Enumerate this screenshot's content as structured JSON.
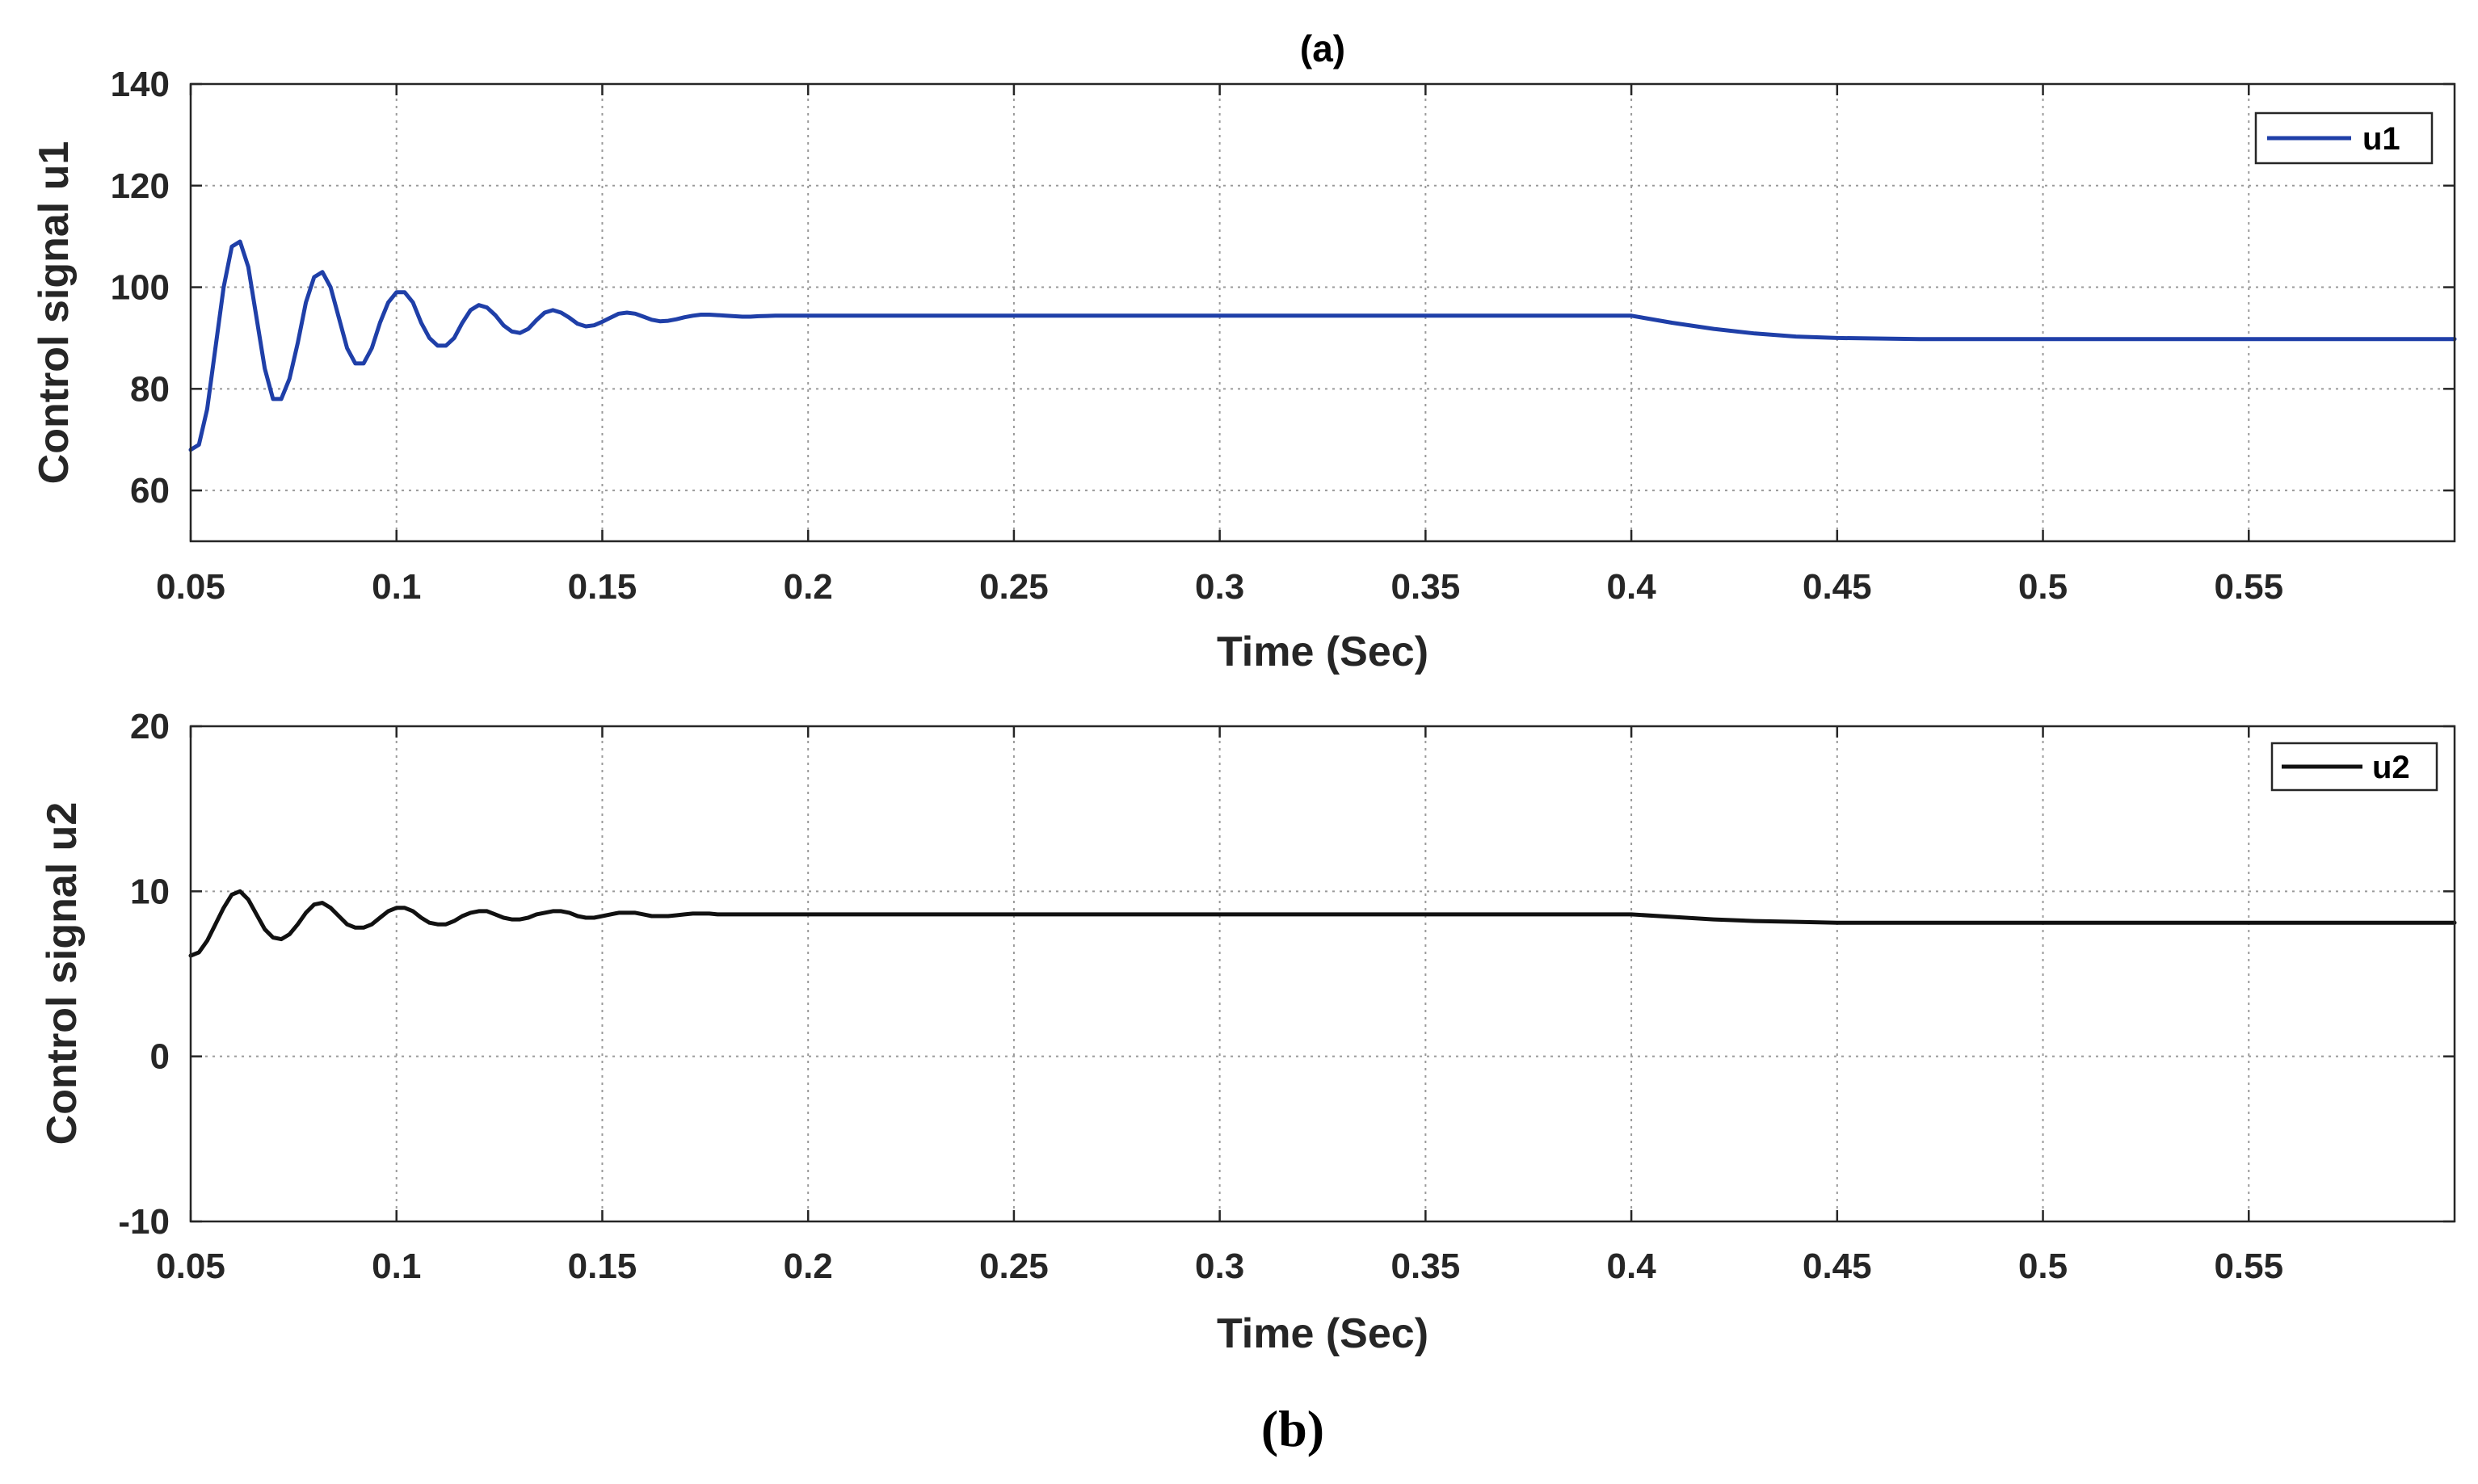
{
  "figure_caption": "(b)",
  "chart_data": [
    {
      "type": "line",
      "title": "(a)",
      "xlabel": "Time (Sec)",
      "ylabel": "Control signal u1",
      "xlim": [
        0.05,
        0.6
      ],
      "ylim": [
        50,
        140
      ],
      "xticks": [
        0.05,
        0.1,
        0.15,
        0.2,
        0.25,
        0.3,
        0.35,
        0.4,
        0.45,
        0.5,
        0.55
      ],
      "xtick_labels": [
        "0.05",
        "0.1",
        "0.15",
        "0.2",
        "0.25",
        "0.3",
        "0.35",
        "0.4",
        "0.45",
        "0.5",
        "0.55"
      ],
      "yticks": [
        60,
        80,
        100,
        120,
        140
      ],
      "ytick_labels": [
        "60",
        "80",
        "100",
        "120",
        "140"
      ],
      "grid": true,
      "legend_position": "top-right",
      "series": [
        {
          "name": "u1",
          "color": "#1f3fa8",
          "x": [
            0.05,
            0.052,
            0.054,
            0.056,
            0.058,
            0.06,
            0.062,
            0.064,
            0.066,
            0.068,
            0.07,
            0.072,
            0.074,
            0.076,
            0.078,
            0.08,
            0.082,
            0.084,
            0.086,
            0.088,
            0.09,
            0.092,
            0.094,
            0.096,
            0.098,
            0.1,
            0.102,
            0.104,
            0.106,
            0.108,
            0.11,
            0.112,
            0.114,
            0.116,
            0.118,
            0.12,
            0.122,
            0.124,
            0.126,
            0.128,
            0.13,
            0.132,
            0.134,
            0.136,
            0.138,
            0.14,
            0.142,
            0.144,
            0.146,
            0.148,
            0.15,
            0.152,
            0.154,
            0.156,
            0.158,
            0.16,
            0.162,
            0.164,
            0.166,
            0.168,
            0.17,
            0.172,
            0.174,
            0.176,
            0.178,
            0.18,
            0.182,
            0.184,
            0.186,
            0.188,
            0.19,
            0.192,
            0.194,
            0.196,
            0.198,
            0.2,
            0.25,
            0.3,
            0.35,
            0.38,
            0.4,
            0.41,
            0.42,
            0.43,
            0.44,
            0.45,
            0.47,
            0.5,
            0.55,
            0.6
          ],
          "values": [
            68,
            69,
            76,
            88,
            100,
            108,
            109,
            104,
            94,
            84,
            78,
            78,
            82,
            89,
            97,
            102,
            103,
            100,
            94,
            88,
            85,
            85,
            88,
            93,
            97,
            99,
            99,
            97,
            93,
            90,
            88.5,
            88.5,
            90,
            93,
            95.5,
            96.5,
            96,
            94.5,
            92.5,
            91.3,
            91,
            91.8,
            93.5,
            95,
            95.5,
            95,
            94,
            92.8,
            92.3,
            92.5,
            93.2,
            94,
            94.8,
            95,
            94.8,
            94.2,
            93.6,
            93.3,
            93.4,
            93.7,
            94.1,
            94.4,
            94.6,
            94.6,
            94.5,
            94.4,
            94.3,
            94.2,
            94.2,
            94.3,
            94.35,
            94.4,
            94.4,
            94.4,
            94.4,
            94.4,
            94.4,
            94.4,
            94.4,
            94.4,
            94.4,
            93.0,
            91.8,
            90.9,
            90.3,
            90.0,
            89.8,
            89.8,
            89.8,
            89.8
          ]
        }
      ]
    },
    {
      "type": "line",
      "title": "",
      "xlabel": "Time (Sec)",
      "ylabel": "Control signal u2",
      "xlim": [
        0.05,
        0.6
      ],
      "ylim": [
        -10,
        20
      ],
      "xticks": [
        0.05,
        0.1,
        0.15,
        0.2,
        0.25,
        0.3,
        0.35,
        0.4,
        0.45,
        0.5,
        0.55
      ],
      "xtick_labels": [
        "0.05",
        "0.1",
        "0.15",
        "0.2",
        "0.25",
        "0.3",
        "0.35",
        "0.4",
        "0.45",
        "0.5",
        "0.55"
      ],
      "yticks": [
        -10,
        0,
        10,
        20
      ],
      "ytick_labels": [
        "-10",
        "0",
        "10",
        "20"
      ],
      "grid": true,
      "legend_position": "top-right",
      "series": [
        {
          "name": "u2",
          "color": "#111111",
          "x": [
            0.05,
            0.052,
            0.054,
            0.056,
            0.058,
            0.06,
            0.062,
            0.064,
            0.066,
            0.068,
            0.07,
            0.072,
            0.074,
            0.076,
            0.078,
            0.08,
            0.082,
            0.084,
            0.086,
            0.088,
            0.09,
            0.092,
            0.094,
            0.096,
            0.098,
            0.1,
            0.102,
            0.104,
            0.106,
            0.108,
            0.11,
            0.112,
            0.114,
            0.116,
            0.118,
            0.12,
            0.122,
            0.124,
            0.126,
            0.128,
            0.13,
            0.132,
            0.134,
            0.136,
            0.138,
            0.14,
            0.142,
            0.144,
            0.146,
            0.148,
            0.15,
            0.152,
            0.154,
            0.156,
            0.158,
            0.16,
            0.162,
            0.164,
            0.166,
            0.168,
            0.17,
            0.172,
            0.174,
            0.176,
            0.178,
            0.18,
            0.182,
            0.184,
            0.186,
            0.188,
            0.19,
            0.192,
            0.194,
            0.196,
            0.198,
            0.2,
            0.25,
            0.3,
            0.35,
            0.38,
            0.4,
            0.41,
            0.42,
            0.43,
            0.44,
            0.45,
            0.47,
            0.5,
            0.55,
            0.6
          ],
          "values": [
            6.1,
            6.3,
            7.0,
            8.0,
            9.0,
            9.8,
            10.0,
            9.5,
            8.6,
            7.7,
            7.2,
            7.1,
            7.4,
            8.0,
            8.7,
            9.2,
            9.3,
            9.0,
            8.5,
            8.0,
            7.8,
            7.8,
            8.0,
            8.4,
            8.8,
            9.0,
            9.0,
            8.8,
            8.4,
            8.1,
            8.0,
            8.0,
            8.2,
            8.5,
            8.7,
            8.8,
            8.8,
            8.6,
            8.4,
            8.3,
            8.3,
            8.4,
            8.6,
            8.7,
            8.8,
            8.8,
            8.7,
            8.5,
            8.4,
            8.4,
            8.5,
            8.6,
            8.7,
            8.7,
            8.7,
            8.6,
            8.5,
            8.5,
            8.5,
            8.55,
            8.6,
            8.65,
            8.65,
            8.65,
            8.6,
            8.6,
            8.6,
            8.6,
            8.6,
            8.6,
            8.6,
            8.6,
            8.6,
            8.6,
            8.6,
            8.6,
            8.6,
            8.6,
            8.6,
            8.6,
            8.6,
            8.45,
            8.3,
            8.2,
            8.15,
            8.1,
            8.1,
            8.1,
            8.1,
            8.1
          ]
        }
      ]
    }
  ]
}
